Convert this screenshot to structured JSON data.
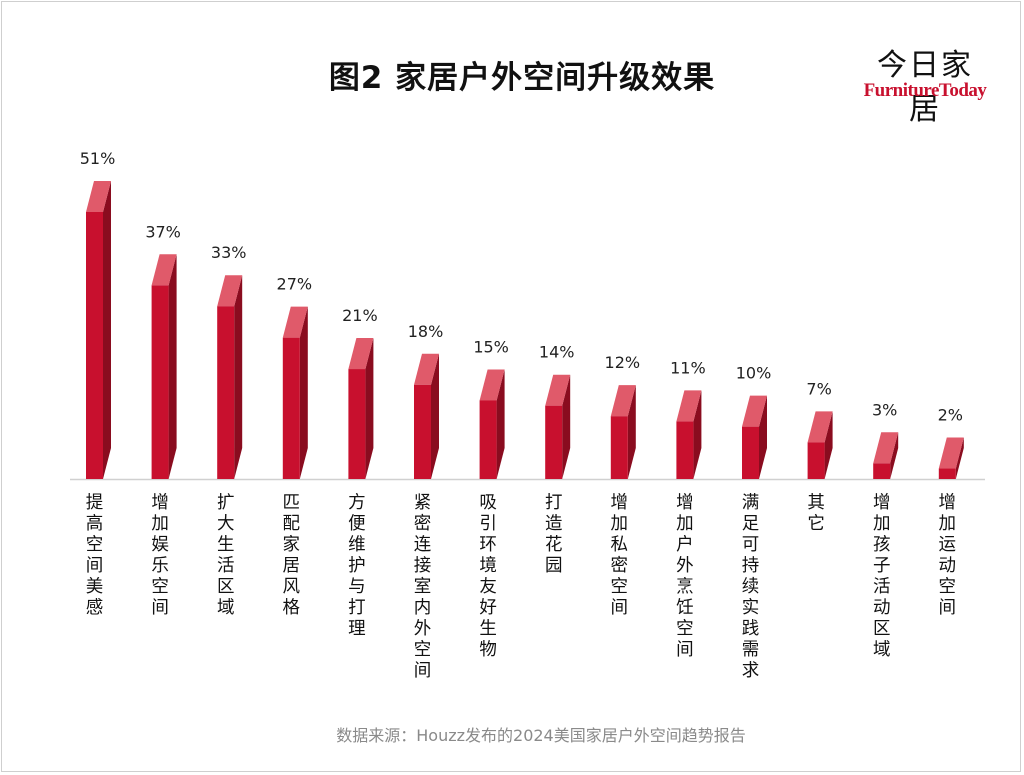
{
  "brand": {
    "cn": "今日家居",
    "en": "FurnitureToday"
  },
  "source": "数据来源：Houzz发布的2024美国家居户外空间趋势报告",
  "colors": {
    "bar_front": "#c8102e",
    "bar_top": "#e05a6a",
    "bar_side": "#8a0c1f",
    "axis": "#d0d0d0"
  },
  "chart_data": {
    "type": "bar",
    "title": "图2  家居户外空间升级效果",
    "categories": [
      "提高空间美感",
      "增加娱乐空间",
      "扩大生活区域",
      "匹配家居风格",
      "方便维护与打理",
      "紧密连接室内外空间",
      "吸引环境友好生物",
      "打造花园",
      "增加私密空间",
      "增加户外烹饪空间",
      "满足可持续实践需求",
      "其它",
      "增加孩子活动区域",
      "增加运动空间"
    ],
    "values": [
      51,
      37,
      33,
      27,
      21,
      18,
      15,
      14,
      12,
      11,
      10,
      7,
      3,
      2
    ],
    "labels": [
      "51%",
      "37%",
      "33%",
      "27%",
      "21%",
      "18%",
      "15%",
      "14%",
      "12%",
      "11%",
      "10%",
      "7%",
      "3%",
      "2%"
    ],
    "unit": "%",
    "ylim": [
      0,
      51
    ],
    "grid": false,
    "legend": "none"
  }
}
